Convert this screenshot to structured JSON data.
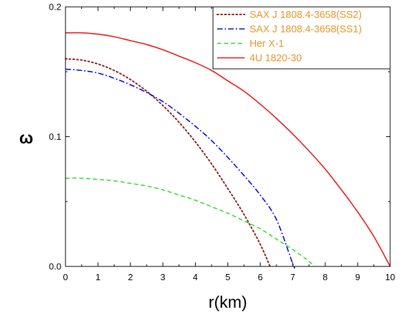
{
  "chart_data": {
    "type": "line",
    "title": "",
    "xlabel": "r(km)",
    "ylabel": "ω",
    "xlim": [
      0,
      10
    ],
    "ylim": [
      0,
      0.2
    ],
    "xticks": [
      "0",
      "1",
      "2",
      "3",
      "4",
      "5",
      "6",
      "7",
      "8",
      "9",
      "10"
    ],
    "yticks": [
      "0.0",
      "0.1",
      "0.2"
    ],
    "grid": false,
    "legend_position": "top-right",
    "legend_text_color": "#E8942A",
    "series": [
      {
        "name": "SAX J 1808.4-3658(SS2)",
        "color": "#8B1A1A",
        "dash": "dotted",
        "x": [
          0,
          0.5,
          1,
          1.5,
          2,
          2.5,
          3,
          3.5,
          4,
          4.5,
          5,
          5.5,
          6,
          6.3
        ],
        "y": [
          0.16,
          0.159,
          0.156,
          0.151,
          0.144,
          0.135,
          0.124,
          0.111,
          0.096,
          0.079,
          0.06,
          0.04,
          0.017,
          0.0
        ]
      },
      {
        "name": "SAX J 1808.4-3658(SS1)",
        "color": "#0000DD",
        "dash": "dash-dot",
        "x": [
          0,
          0.5,
          1,
          1.5,
          2,
          2.5,
          3,
          3.5,
          4,
          4.5,
          5,
          5.5,
          6,
          6.5,
          7,
          7.05
        ],
        "y": [
          0.152,
          0.151,
          0.149,
          0.145,
          0.14,
          0.134,
          0.127,
          0.118,
          0.108,
          0.097,
          0.084,
          0.07,
          0.055,
          0.036,
          0.002,
          0.0
        ]
      },
      {
        "name": "Her X-1",
        "color": "#22DD22",
        "dash": "dashed",
        "x": [
          0,
          0.5,
          1,
          1.5,
          2,
          2.5,
          3,
          3.5,
          4,
          4.5,
          5,
          5.5,
          6,
          6.5,
          7,
          7.5,
          7.65
        ],
        "y": [
          0.068,
          0.068,
          0.067,
          0.066,
          0.064,
          0.062,
          0.059,
          0.055,
          0.051,
          0.046,
          0.041,
          0.035,
          0.029,
          0.021,
          0.013,
          0.004,
          0.0
        ]
      },
      {
        "name": "4U 1820-30",
        "color": "#EE1111",
        "dash": "solid",
        "x": [
          0,
          0.5,
          1,
          1.5,
          2,
          2.5,
          3,
          3.5,
          4,
          4.5,
          5,
          5.5,
          6,
          6.5,
          7,
          7.5,
          8,
          8.5,
          9,
          9.5,
          10
        ],
        "y": [
          0.18,
          0.18,
          0.179,
          0.177,
          0.174,
          0.171,
          0.167,
          0.162,
          0.157,
          0.151,
          0.143,
          0.135,
          0.125,
          0.114,
          0.102,
          0.089,
          0.075,
          0.059,
          0.042,
          0.023,
          0.0
        ]
      }
    ]
  }
}
